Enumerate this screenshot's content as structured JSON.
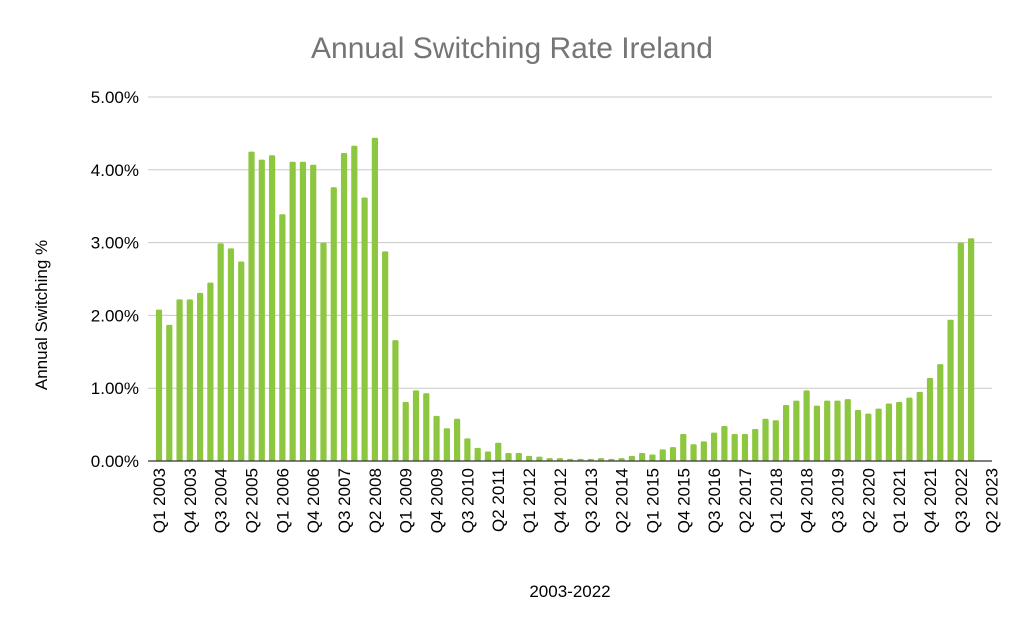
{
  "chart_data": {
    "type": "bar",
    "title": "Annual Switching Rate Ireland",
    "xlabel": "2003-2022",
    "ylabel": "Annual Switching %",
    "ylim": [
      0,
      5
    ],
    "y_ticks": [
      "0.00%",
      "1.00%",
      "2.00%",
      "3.00%",
      "4.00%",
      "5.00%"
    ],
    "x_ticks": [
      "Q1 2003",
      "Q4 2003",
      "Q3 2004",
      "Q2 2005",
      "Q1 2006",
      "Q4 2006",
      "Q3 2007",
      "Q2 2008",
      "Q1 2009",
      "Q4 2009",
      "Q3 2010",
      "Q2 2011",
      "Q1 2012",
      "Q4 2012",
      "Q3 2013",
      "Q2 2014",
      "Q1 2015",
      "Q4 2015",
      "Q3 2016",
      "Q2 2017",
      "Q1 2018",
      "Q4 2018",
      "Q3 2019",
      "Q2 2020",
      "Q1 2021",
      "Q4 2021",
      "Q3 2022",
      "Q2 2023"
    ],
    "categories": [
      "Q1 2003",
      "Q2 2003",
      "Q3 2003",
      "Q4 2003",
      "Q1 2004",
      "Q2 2004",
      "Q3 2004",
      "Q4 2004",
      "Q1 2005",
      "Q2 2005",
      "Q3 2005",
      "Q4 2005",
      "Q1 2006",
      "Q2 2006",
      "Q3 2006",
      "Q4 2006",
      "Q1 2007",
      "Q2 2007",
      "Q3 2007",
      "Q4 2007",
      "Q1 2008",
      "Q2 2008",
      "Q3 2008",
      "Q4 2008",
      "Q1 2009",
      "Q2 2009",
      "Q3 2009",
      "Q4 2009",
      "Q1 2010",
      "Q2 2010",
      "Q3 2010",
      "Q4 2010",
      "Q1 2011",
      "Q2 2011",
      "Q3 2011",
      "Q4 2011",
      "Q1 2012",
      "Q2 2012",
      "Q3 2012",
      "Q4 2012",
      "Q1 2013",
      "Q2 2013",
      "Q3 2013",
      "Q4 2013",
      "Q1 2014",
      "Q2 2014",
      "Q3 2014",
      "Q4 2014",
      "Q1 2015",
      "Q2 2015",
      "Q3 2015",
      "Q4 2015",
      "Q1 2016",
      "Q2 2016",
      "Q3 2016",
      "Q4 2016",
      "Q1 2017",
      "Q2 2017",
      "Q3 2017",
      "Q4 2017",
      "Q1 2018",
      "Q2 2018",
      "Q3 2018",
      "Q4 2018",
      "Q1 2019",
      "Q2 2019",
      "Q3 2019",
      "Q4 2019",
      "Q1 2020",
      "Q2 2020",
      "Q3 2020",
      "Q4 2020",
      "Q1 2021",
      "Q2 2021",
      "Q3 2021",
      "Q4 2021",
      "Q1 2022",
      "Q2 2022",
      "Q3 2022",
      "Q4 2022"
    ],
    "values": [
      2.08,
      1.87,
      2.22,
      2.22,
      2.31,
      2.45,
      2.99,
      2.92,
      2.74,
      4.25,
      4.14,
      4.2,
      3.39,
      4.11,
      4.11,
      4.07,
      3.0,
      3.76,
      4.23,
      4.33,
      3.62,
      4.44,
      2.88,
      1.66,
      0.81,
      0.97,
      0.93,
      0.62,
      0.45,
      0.58,
      0.31,
      0.18,
      0.13,
      0.25,
      0.11,
      0.11,
      0.07,
      0.06,
      0.04,
      0.04,
      0.03,
      0.03,
      0.03,
      0.04,
      0.03,
      0.04,
      0.07,
      0.11,
      0.09,
      0.16,
      0.19,
      0.37,
      0.23,
      0.27,
      0.39,
      0.48,
      0.37,
      0.37,
      0.44,
      0.58,
      0.56,
      0.77,
      0.83,
      0.97,
      0.76,
      0.83,
      0.83,
      0.85,
      0.7,
      0.65,
      0.72,
      0.79,
      0.81,
      0.87,
      0.95,
      1.14,
      1.33,
      1.94,
      3.0,
      3.06
    ],
    "series_name": "",
    "bar_color": "#8dc63f",
    "grid": true,
    "legend": "none"
  }
}
